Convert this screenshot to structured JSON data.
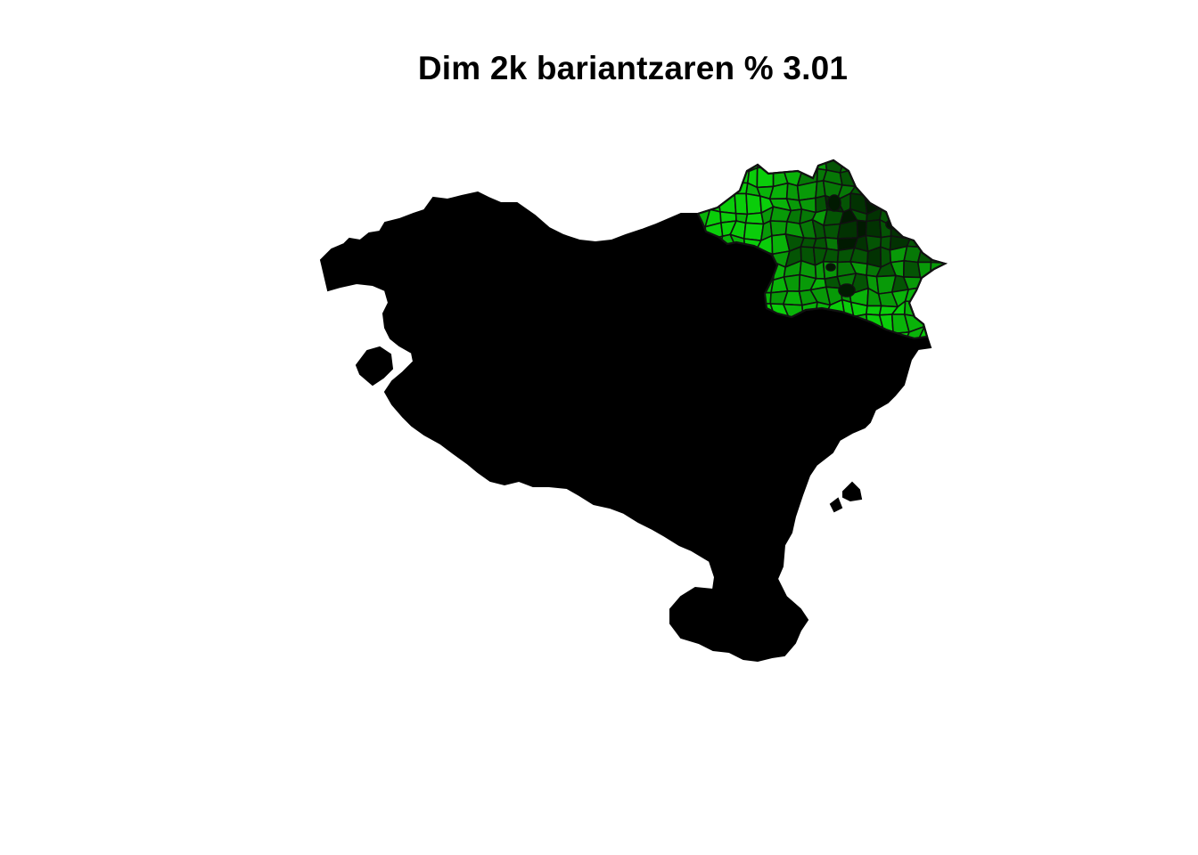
{
  "map": {
    "title": "Dim 2k bariantzaren % 3.01"
  },
  "colors": {
    "background": "#ffffff",
    "land": "#000000",
    "border": "#111111",
    "scale": [
      "#0acd0a",
      "#09b309",
      "#089a08",
      "#067806",
      "#045404",
      "#023202",
      "#011a01"
    ]
  }
}
